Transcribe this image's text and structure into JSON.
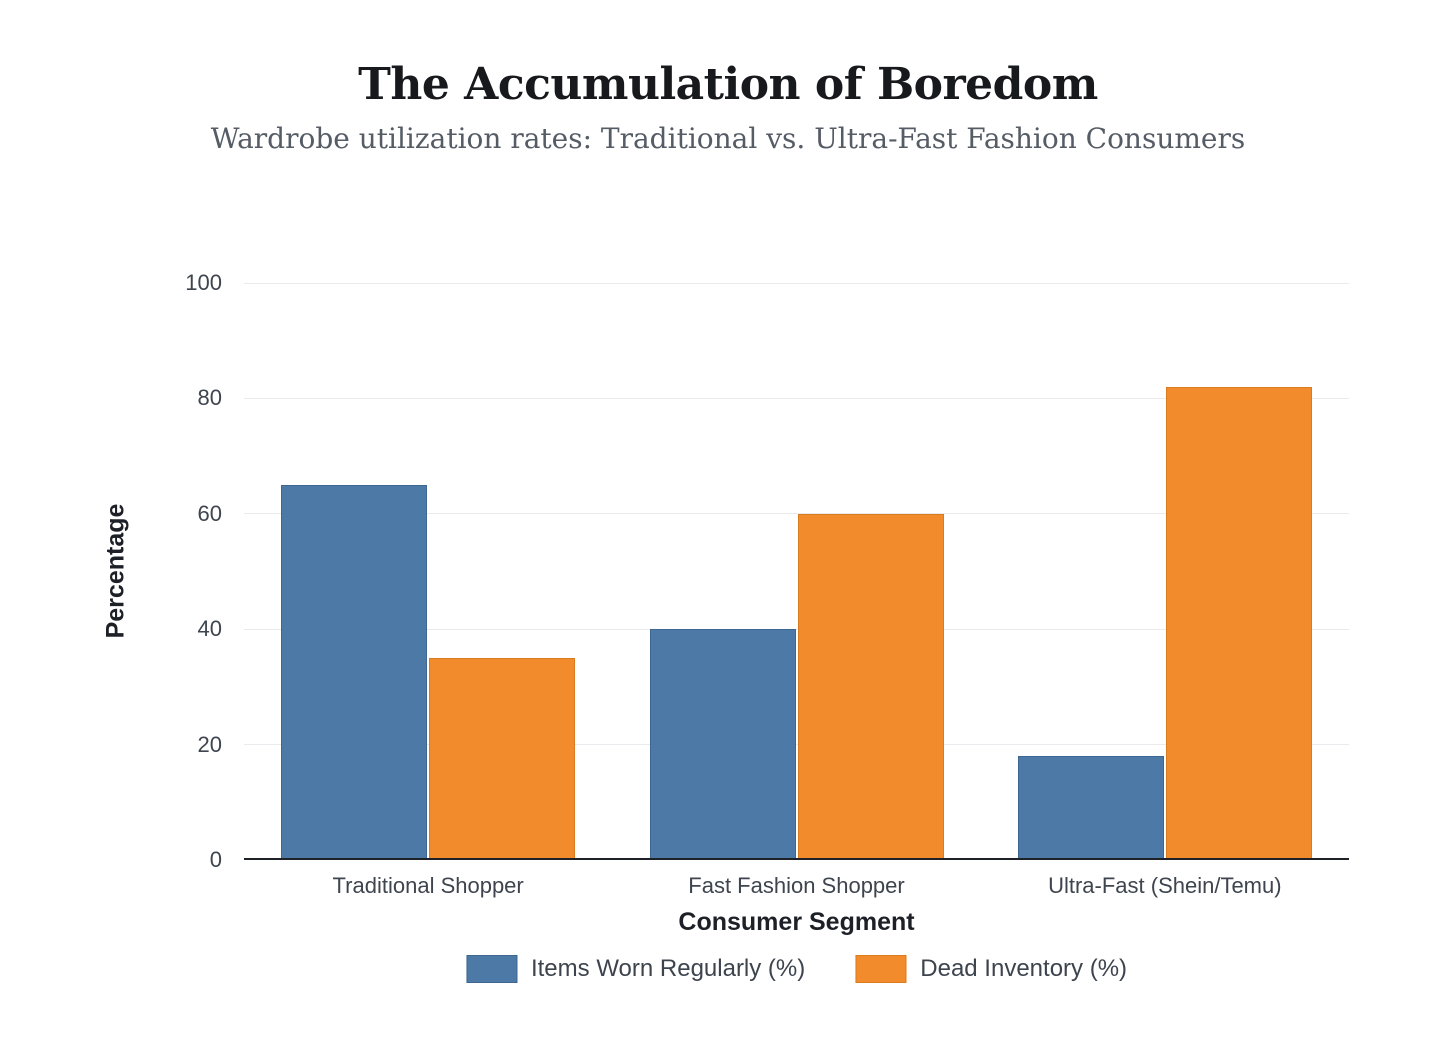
{
  "chart_data": {
    "type": "bar",
    "title": "The Accumulation of Boredom",
    "subtitle": "Wardrobe utilization rates: Traditional vs. Ultra-Fast Fashion Consumers",
    "xlabel": "Consumer Segment",
    "ylabel": "Percentage",
    "categories": [
      "Traditional Shopper",
      "Fast Fashion Shopper",
      "Ultra-Fast (Shein/Temu)"
    ],
    "series": [
      {
        "name": "Items Worn Regularly (%)",
        "color": "#4d79a6",
        "edge_color": "#3d6691",
        "values": [
          65,
          40,
          18
        ]
      },
      {
        "name": "Dead Inventory (%)",
        "color": "#f18b2c",
        "edge_color": "#da7b20",
        "values": [
          35,
          60,
          82
        ]
      }
    ],
    "ylim": [
      0,
      100
    ],
    "yticks": [
      0,
      20,
      40,
      60,
      80,
      100
    ],
    "grid": "horizontal",
    "legend_position": "bottom"
  },
  "colors": {
    "background": "#ffffff",
    "gridline": "#e8eaee",
    "axis_line": "#1e2125",
    "tick_text": "#3e454f",
    "title_text": "#17191d",
    "subtitle_text": "#555c66"
  }
}
